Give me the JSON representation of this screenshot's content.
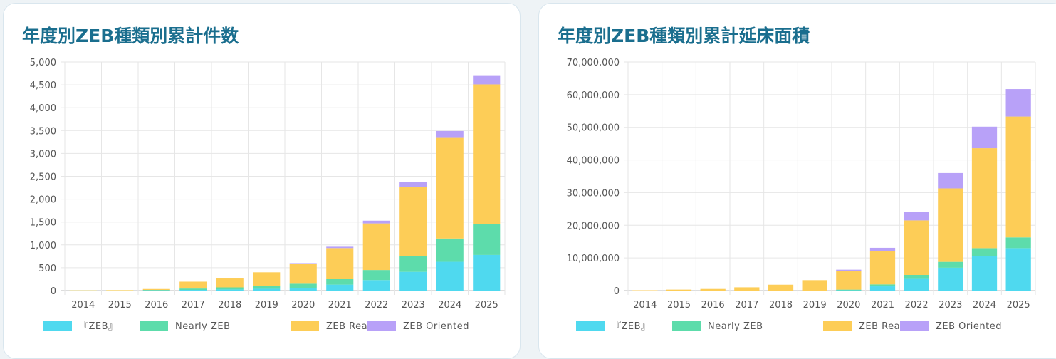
{
  "colors": {
    "zeb": "#4fd9ef",
    "nearly": "#5ddcab",
    "ready": "#fdcd57",
    "oriented": "#b8a1f8"
  },
  "chart_data": [
    {
      "type": "bar",
      "stacked": true,
      "title": "年度別ZEB種類別累計件数",
      "categories": [
        "2014",
        "2015",
        "2016",
        "2017",
        "2018",
        "2019",
        "2020",
        "2021",
        "2022",
        "2023",
        "2024",
        "2025"
      ],
      "series": [
        {
          "name": "『ZEB』",
          "values": [
            0,
            2,
            5,
            15,
            25,
            40,
            60,
            130,
            230,
            410,
            630,
            780
          ]
        },
        {
          "name": "Nearly ZEB",
          "values": [
            3,
            5,
            10,
            30,
            45,
            60,
            90,
            120,
            220,
            350,
            510,
            670
          ]
        },
        {
          "name": "ZEB Ready",
          "values": [
            2,
            3,
            20,
            150,
            210,
            300,
            440,
            680,
            1020,
            1510,
            2200,
            3060
          ]
        },
        {
          "name": "ZEB Oriented",
          "values": [
            0,
            0,
            0,
            0,
            0,
            0,
            10,
            30,
            60,
            110,
            150,
            200
          ]
        }
      ],
      "ylim": [
        0,
        5000
      ],
      "yticks": [
        "0",
        "500",
        "1,000",
        "1,500",
        "2,000",
        "2,500",
        "3,000",
        "3,500",
        "4,000",
        "4,500",
        "5,000"
      ],
      "ytick_values": [
        0,
        500,
        1000,
        1500,
        2000,
        2500,
        3000,
        3500,
        4000,
        4500,
        5000
      ],
      "grid": true,
      "legend": "bottom"
    },
    {
      "type": "bar",
      "stacked": true,
      "title": "年度別ZEB種類別累計延床面積",
      "categories": [
        "2014",
        "2015",
        "2016",
        "2017",
        "2018",
        "2019",
        "2020",
        "2021",
        "2022",
        "2023",
        "2024",
        "2025"
      ],
      "series": [
        {
          "name": "『ZEB』",
          "values": [
            0,
            0,
            0,
            0,
            0,
            0,
            100000,
            1300000,
            3800000,
            7000000,
            10500000,
            13000000
          ]
        },
        {
          "name": "Nearly ZEB",
          "values": [
            0,
            0,
            0,
            0,
            0,
            0,
            200000,
            600000,
            1000000,
            1800000,
            2500000,
            3300000
          ]
        },
        {
          "name": "ZEB Ready",
          "values": [
            100000,
            300000,
            500000,
            1000000,
            1800000,
            3200000,
            5800000,
            10300000,
            16700000,
            22500000,
            30600000,
            37000000
          ]
        },
        {
          "name": "ZEB Oriented",
          "values": [
            0,
            0,
            0,
            0,
            0,
            0,
            300000,
            900000,
            2500000,
            4700000,
            6600000,
            8400000
          ]
        }
      ],
      "ylim": [
        0,
        70000000
      ],
      "yticks": [
        "0",
        "10,000,000",
        "20,000,000",
        "30,000,000",
        "40,000,000",
        "50,000,000",
        "60,000,000",
        "70,000,000"
      ],
      "ytick_values": [
        0,
        10000000,
        20000000,
        30000000,
        40000000,
        50000000,
        60000000,
        70000000
      ],
      "grid": true,
      "legend": "bottom"
    }
  ]
}
